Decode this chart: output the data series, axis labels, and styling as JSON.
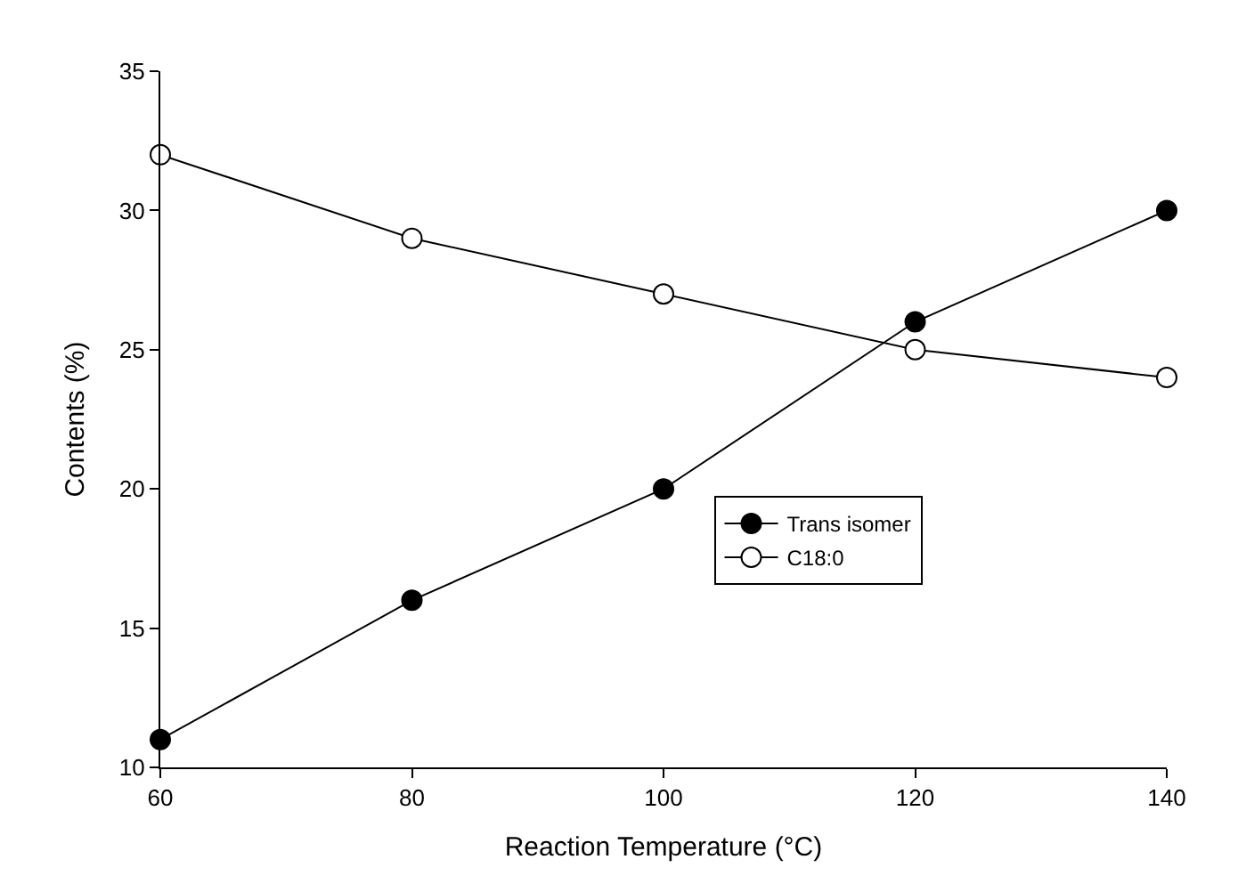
{
  "chart_data": {
    "type": "line",
    "xlabel": "Reaction Temperature (°C)",
    "ylabel": "Contents (%)",
    "x": [
      60,
      80,
      100,
      120,
      140
    ],
    "series": [
      {
        "name": "Trans isomer",
        "color": "#000000",
        "values": [
          11,
          16,
          20,
          26,
          30
        ]
      },
      {
        "name": "C18:0",
        "color": "#ffffff",
        "values": [
          32,
          29,
          27,
          25,
          24
        ]
      }
    ],
    "xlim": [
      60,
      140
    ],
    "xticks": [
      60,
      80,
      100,
      120,
      140
    ],
    "ylim": [
      10,
      35
    ],
    "yticks": [
      10,
      15,
      20,
      25,
      30,
      35
    ],
    "legend": "center",
    "marker": "circle",
    "line_style": "solid"
  }
}
